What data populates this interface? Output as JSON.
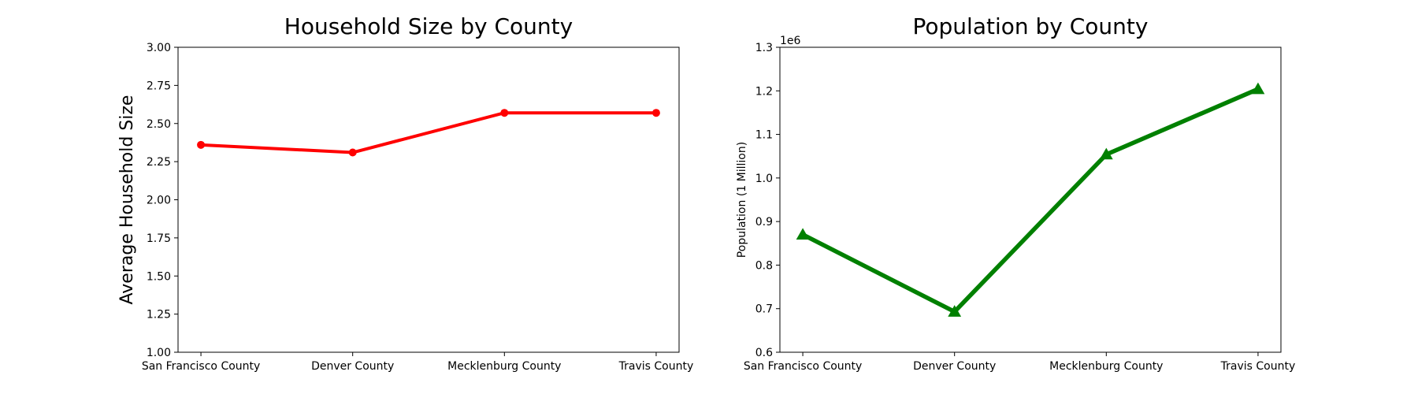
{
  "chart_data": [
    {
      "type": "line",
      "title": "Household Size by County",
      "xlabel": "",
      "ylabel": "Average Household Size",
      "categories": [
        "San Francisco County",
        "Denver County",
        "Mecklenburg County",
        "Travis County"
      ],
      "series": [
        {
          "values": [
            2.36,
            2.31,
            2.57,
            2.57
          ],
          "color": "#ff0000",
          "marker": "circle"
        }
      ],
      "ylim": [
        1.0,
        3.0
      ],
      "yticks": [
        "1.00",
        "1.25",
        "1.50",
        "1.75",
        "2.00",
        "2.25",
        "2.50",
        "2.75",
        "3.00"
      ],
      "grid": false
    },
    {
      "type": "line",
      "title": "Population by County",
      "xlabel": "",
      "ylabel": "Population (1 Million)",
      "y_offset_label": "1e6",
      "categories": [
        "San Francisco County",
        "Denver County",
        "Mecklenburg County",
        "Travis County"
      ],
      "series": [
        {
          "values": [
            870000,
            693000,
            1054000,
            1204000
          ],
          "color": "#008000",
          "marker": "triangle"
        }
      ],
      "ylim": [
        600000,
        1300000
      ],
      "yticks": [
        "0.6",
        "0.7",
        "0.8",
        "0.9",
        "1.0",
        "1.1",
        "1.2",
        "1.3"
      ],
      "grid": false
    }
  ]
}
